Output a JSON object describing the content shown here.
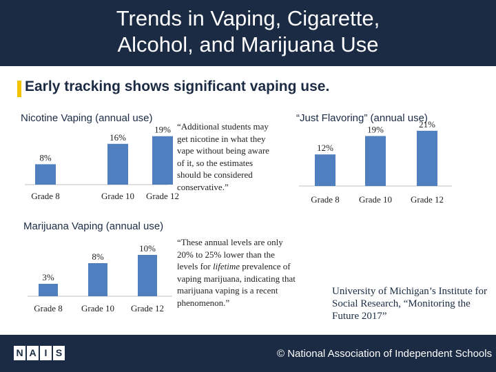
{
  "header": {
    "title_line1": "Trends in Vaping, Cigarette,",
    "title_line2": "Alcohol, and Marijuana Use"
  },
  "subtitle": "Early tracking shows significant vaping use.",
  "colors": {
    "navy": "#1b2b44",
    "bar": "#4f7fbe",
    "accent": "#f2c300"
  },
  "quote_nicotine": "“Additional students may get nicotine in what they vape without being aware of it, so the estimates should be considered conservative.”",
  "quote_marijuana_parts": [
    "“These annual levels are only 20% to 25% lower than the levels for ",
    "lifetime",
    " prevalence of vaping marijuana, indicating that marijuana vaping is a recent phenomenon.”"
  ],
  "citation": "University of Michigan’s Institute for Social Research, “Monitoring the Future 2017”",
  "footer": {
    "logo_cells": [
      "N",
      "A",
      "I",
      "S"
    ],
    "org_name": "© National Association of Independent Schools"
  },
  "chart_data": [
    {
      "type": "bar",
      "title": "Nicotine Vaping (annual use)",
      "categories": [
        "Grade 8",
        "Grade 10",
        "Grade 12"
      ],
      "values": [
        8,
        16,
        19
      ],
      "labels": [
        "8%",
        "16%",
        "19%"
      ],
      "ylim": [
        0,
        20
      ],
      "grid": false,
      "legend": "none"
    },
    {
      "type": "bar",
      "title": "“Just Flavoring” (annual use)",
      "categories": [
        "Grade 8",
        "Grade 10",
        "Grade 12"
      ],
      "values": [
        12,
        19,
        21
      ],
      "labels": [
        "12%",
        "19%",
        "21%"
      ],
      "ylim": [
        0,
        22
      ],
      "grid": false,
      "legend": "none"
    },
    {
      "type": "bar",
      "title": "Marijuana Vaping (annual use)",
      "categories": [
        "Grade 8",
        "Grade 10",
        "Grade 12"
      ],
      "values": [
        3,
        8,
        10
      ],
      "labels": [
        "3%",
        "8%",
        "10%"
      ],
      "ylim": [
        0,
        11
      ],
      "grid": false,
      "legend": "none"
    }
  ]
}
